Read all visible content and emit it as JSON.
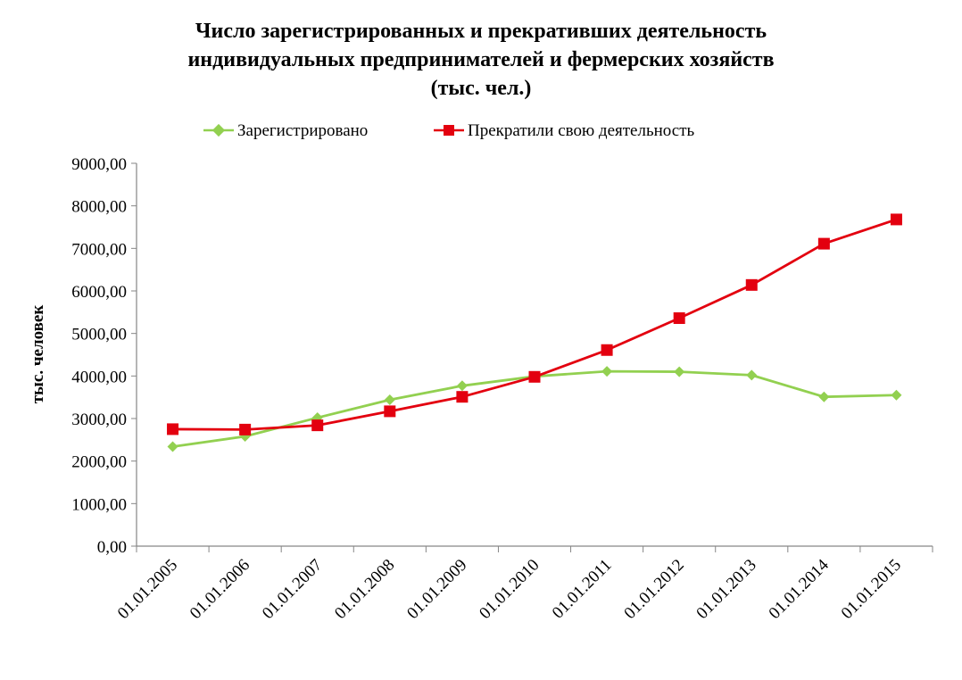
{
  "chart_data": {
    "type": "line",
    "title_lines": [
      "Число зарегистрированных  и прекративших деятельность",
      "индивидуальных предпринимателей и фермерских хозяйств",
      "(тыс. чел.)"
    ],
    "ylabel": "тыс. человек",
    "xlabel": "",
    "categories": [
      "01.01.2005",
      "01.01.2006",
      "01.01.2007",
      "01.01.2008",
      "01.01.2009",
      "01.01.2010",
      "01.01.2011",
      "01.01.2012",
      "01.01.2013",
      "01.01.2014",
      "01.01.2015"
    ],
    "ylim": [
      0,
      9000
    ],
    "yticks": [
      0,
      1000,
      2000,
      3000,
      4000,
      5000,
      6000,
      7000,
      8000,
      9000
    ],
    "ytick_labels": [
      "0,00",
      "1000,00",
      "2000,00",
      "3000,00",
      "4000,00",
      "5000,00",
      "6000,00",
      "7000,00",
      "8000,00",
      "9000,00"
    ],
    "grid": false,
    "legend_position": "top",
    "series": [
      {
        "name": "Зарегистрировано",
        "color": "#92d050",
        "marker": "diamond",
        "values": [
          2340,
          2580,
          3020,
          3440,
          3770,
          3990,
          4110,
          4100,
          4020,
          3510,
          3550
        ]
      },
      {
        "name": "Прекратили свою деятельность",
        "color": "#e3000f",
        "marker": "square",
        "values": [
          2750,
          2740,
          2840,
          3170,
          3510,
          3980,
          4610,
          5360,
          6140,
          7110,
          7680
        ]
      }
    ]
  }
}
